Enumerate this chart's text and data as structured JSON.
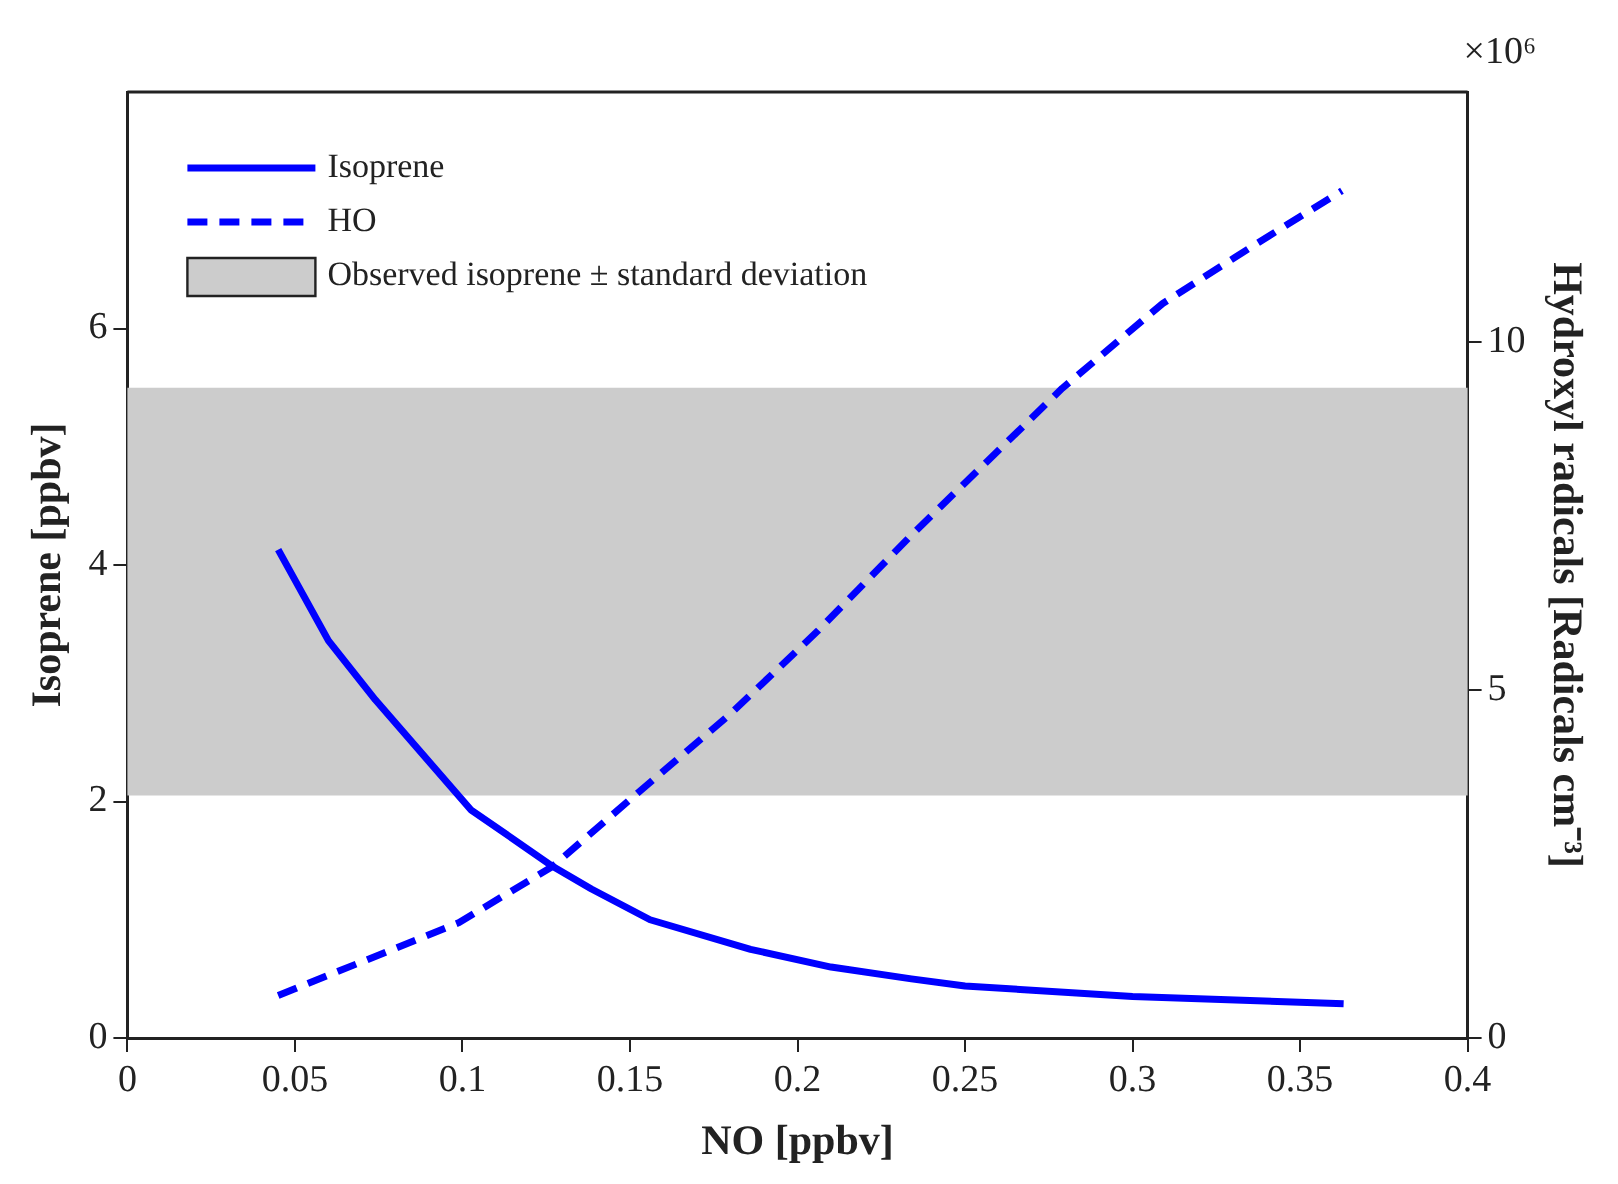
{
  "chart_data": {
    "type": "line",
    "xlabel": "NO [ppbv]",
    "ylabel": "Isoprene [ppbv]",
    "y2label": "Hydroxyl radicals [Radicals cm⁻³]",
    "annotations": [
      "×10⁶"
    ],
    "xlim": [
      0,
      0.4
    ],
    "xticks": [
      0,
      0.05,
      0.1,
      0.15,
      0.2,
      0.25,
      0.3,
      0.35,
      0.4
    ],
    "ylim": [
      0,
      8
    ],
    "yticks": [
      0,
      2,
      4,
      6
    ],
    "y2lim": [
      0,
      13.6
    ],
    "y2ticks": [
      0,
      5,
      10
    ],
    "grid": false,
    "legend": "top left",
    "marker": "none",
    "bands": [
      {
        "axis": "y",
        "from": 2.05,
        "to": 5.5,
        "label": "Observed isoprene ± standard deviation",
        "color": "#cccccc"
      }
    ],
    "series": [
      {
        "name": "Isoprene",
        "color": "#0000ff",
        "line_style": "solid",
        "x": [
          0.045,
          0.06,
          0.074,
          0.1025,
          0.127,
          0.1385,
          0.156,
          0.186,
          0.21,
          0.234,
          0.25,
          0.3,
          0.363
        ],
        "values": [
          4.13,
          3.36,
          2.86,
          1.93,
          1.45,
          1.26,
          1.0,
          0.75,
          0.6,
          0.5,
          0.44,
          0.35,
          0.29
        ]
      },
      {
        "name": "HO",
        "color": "#0000ff",
        "line_style": "dashed",
        "axis": "y2",
        "x": [
          0.045,
          0.099,
          0.127,
          0.152,
          0.18,
          0.206,
          0.234,
          0.279,
          0.309,
          0.337,
          0.3625
        ],
        "values": [
          0.61,
          1.66,
          2.47,
          3.51,
          4.66,
          5.85,
          7.23,
          9.34,
          10.56,
          11.42,
          12.18
        ]
      }
    ]
  }
}
